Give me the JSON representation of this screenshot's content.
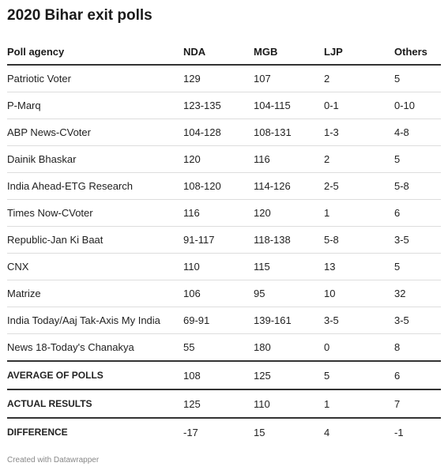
{
  "title": "2020 Bihar exit polls",
  "footer": "Created with Datawrapper",
  "chart_data": {
    "type": "table",
    "columns": [
      "Poll agency",
      "NDA",
      "MGB",
      "LJP",
      "Others"
    ],
    "rows": [
      [
        "Patriotic Voter",
        "129",
        "107",
        "2",
        "5"
      ],
      [
        "P-Marq",
        "123-135",
        "104-115",
        "0-1",
        "0-10"
      ],
      [
        "ABP News-CVoter",
        "104-128",
        "108-131",
        "1-3",
        "4-8"
      ],
      [
        "Dainik Bhaskar",
        "120",
        "116",
        "2",
        "5"
      ],
      [
        "India Ahead-ETG Research",
        "108-120",
        "114-126",
        "2-5",
        "5-8"
      ],
      [
        "Times Now-CVoter",
        "116",
        "120",
        "1",
        "6"
      ],
      [
        "Republic-Jan Ki Baat",
        "91-117",
        "118-138",
        "5-8",
        "3-5"
      ],
      [
        "CNX",
        "110",
        "115",
        "13",
        "5"
      ],
      [
        "Matrize",
        "106",
        "95",
        "10",
        "32"
      ],
      [
        "India Today/Aaj Tak-Axis My India",
        "69-91",
        "139-161",
        "3-5",
        "3-5"
      ],
      [
        "News 18-Today's Chanakya",
        "55",
        "180",
        "0",
        "8"
      ]
    ],
    "summary_rows": [
      [
        "AVERAGE OF POLLS",
        "108",
        "125",
        "5",
        "6"
      ],
      [
        "ACTUAL RESULTS",
        "125",
        "110",
        "1",
        "7"
      ],
      [
        "DIFFERENCE",
        "-17",
        "15",
        "4",
        "-1"
      ]
    ]
  }
}
